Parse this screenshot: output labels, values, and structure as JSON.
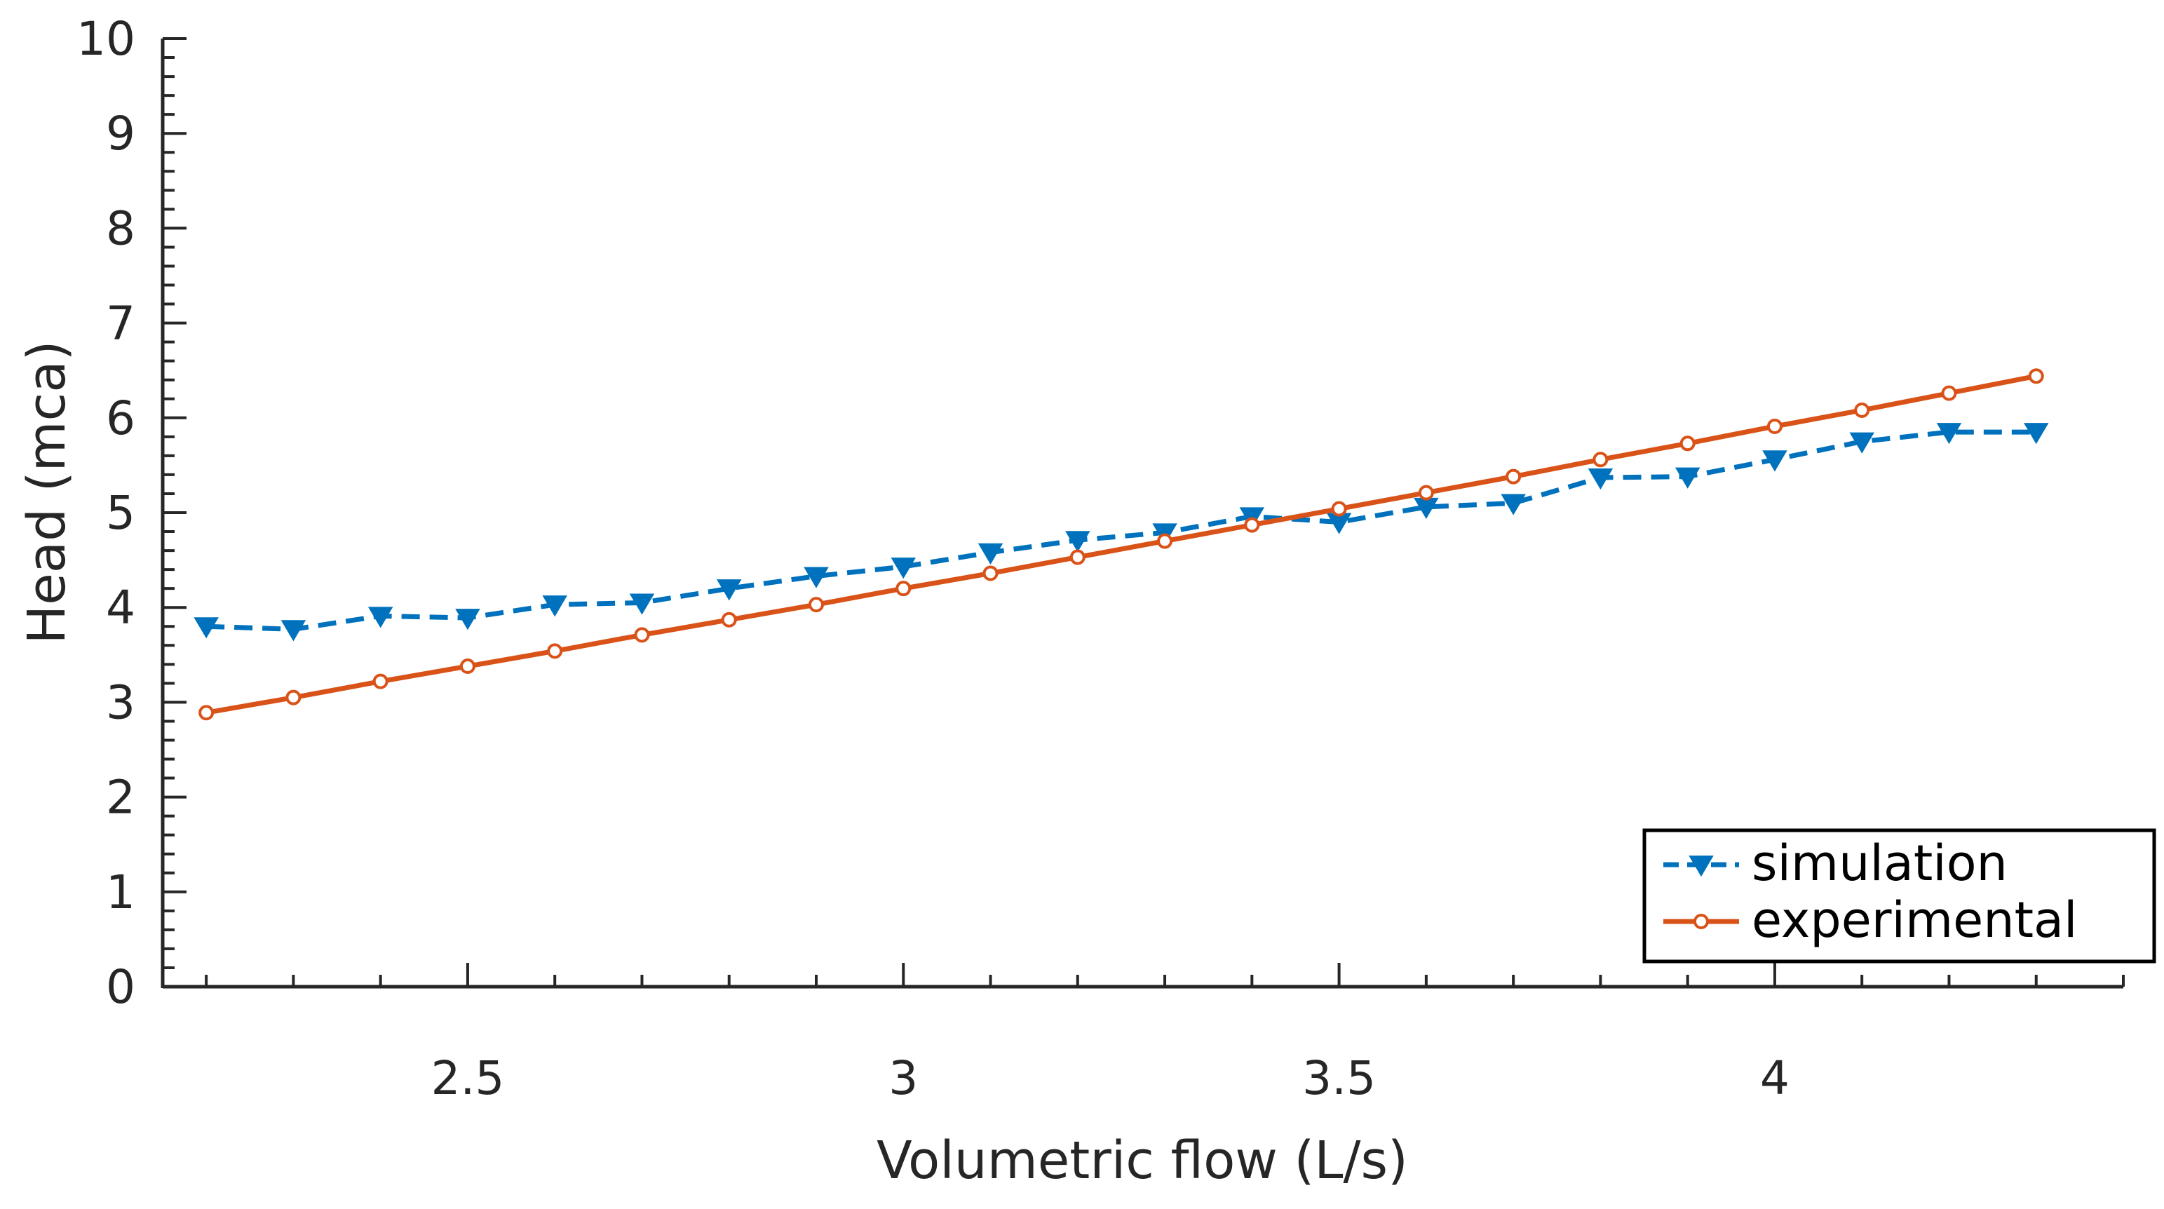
{
  "chart_data": {
    "type": "line",
    "title": "",
    "xlabel": "Volumetric flow (L/s)",
    "ylabel": "Head (mca)",
    "xlim": [
      2.15,
      4.4
    ],
    "ylim": [
      0,
      10
    ],
    "xticks": [
      2.5,
      3,
      3.5,
      4
    ],
    "xtick_labels": [
      "2.5",
      "3",
      "3.5",
      "4"
    ],
    "xminor_step": 0.1,
    "yticks": [
      0,
      1,
      2,
      3,
      4,
      5,
      6,
      7,
      8,
      9,
      10
    ],
    "ytick_labels": [
      "0",
      "1",
      "2",
      "3",
      "4",
      "5",
      "6",
      "7",
      "8",
      "9",
      "10"
    ],
    "yminor_step": 0.2,
    "grid": false,
    "legend_position": "bottom-right",
    "x": [
      2.2,
      2.3,
      2.4,
      2.5,
      2.6,
      2.7,
      2.8,
      2.9,
      3.0,
      3.1,
      3.2,
      3.3,
      3.4,
      3.5,
      3.6,
      3.7,
      3.8,
      3.9,
      4.0,
      4.1,
      4.2,
      4.3
    ],
    "series": [
      {
        "name": "simulation",
        "color": "#0072BD",
        "line_style": "dashed",
        "marker": "triangle-down",
        "values": [
          3.8,
          3.77,
          3.91,
          3.89,
          4.03,
          4.05,
          4.2,
          4.33,
          4.43,
          4.58,
          4.71,
          4.79,
          4.96,
          4.9,
          5.06,
          5.1,
          5.37,
          5.38,
          5.56,
          5.75,
          5.85,
          5.85
        ]
      },
      {
        "name": "experimental",
        "color": "#D95319",
        "line_style": "solid",
        "marker": "circle",
        "values": [
          2.89,
          3.05,
          3.22,
          3.38,
          3.54,
          3.71,
          3.87,
          4.03,
          4.2,
          4.36,
          4.53,
          4.7,
          4.87,
          5.04,
          5.21,
          5.38,
          5.56,
          5.73,
          5.91,
          6.08,
          6.26,
          6.44
        ]
      }
    ]
  }
}
